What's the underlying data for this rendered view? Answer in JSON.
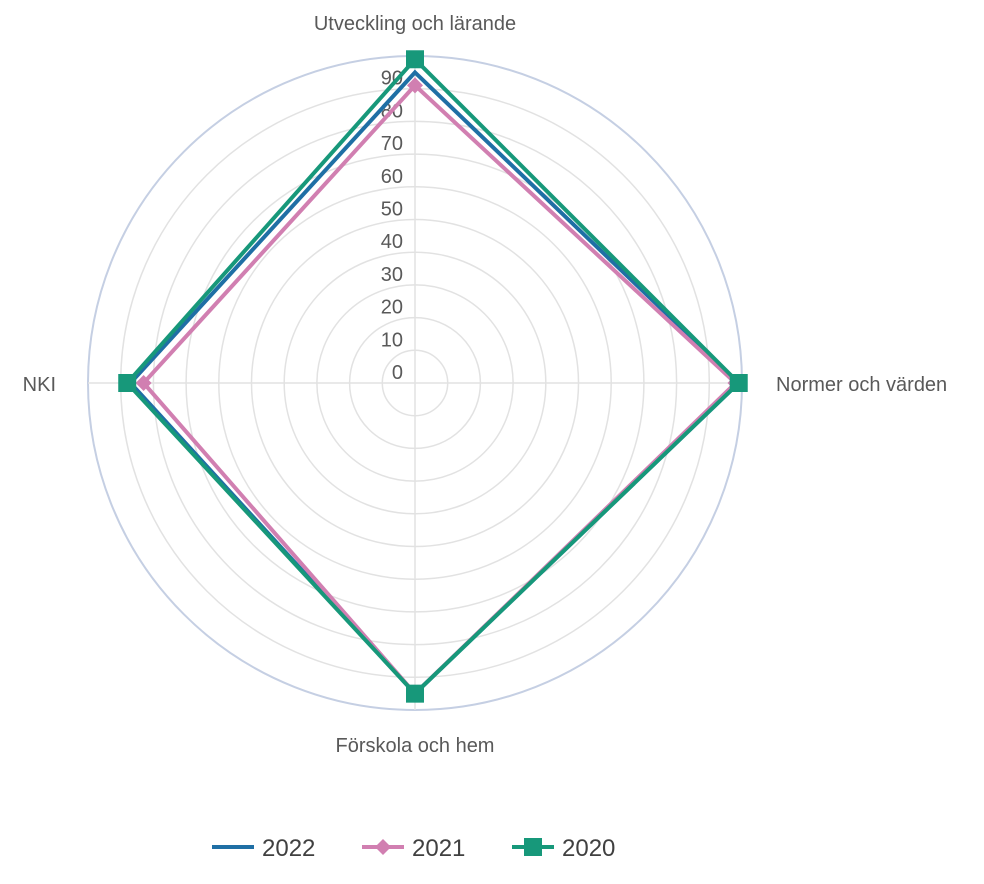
{
  "chart_data": {
    "type": "radar",
    "title": "",
    "axes": [
      "Utveckling och lärande",
      "Normer och värden",
      "Förskola och hem",
      "NKI"
    ],
    "rlim": [
      0,
      100
    ],
    "ticks": [
      "0",
      "10",
      "20",
      "30",
      "40",
      "50",
      "60",
      "70",
      "80",
      "90"
    ],
    "tick_values": [
      0,
      10,
      20,
      30,
      40,
      50,
      60,
      70,
      80,
      90
    ],
    "grid": true,
    "legend_position": "bottom",
    "series": [
      {
        "name": "2022",
        "values": [
          95,
          99,
          95,
          87
        ],
        "color": "#1F6FA5",
        "marker": "none"
      },
      {
        "name": "2021",
        "values": [
          91,
          98,
          95,
          83
        ],
        "color": "#D17FB1",
        "marker": "diamond"
      },
      {
        "name": "2020",
        "values": [
          99,
          99,
          95,
          88
        ],
        "color": "#17987A",
        "marker": "square"
      }
    ]
  }
}
